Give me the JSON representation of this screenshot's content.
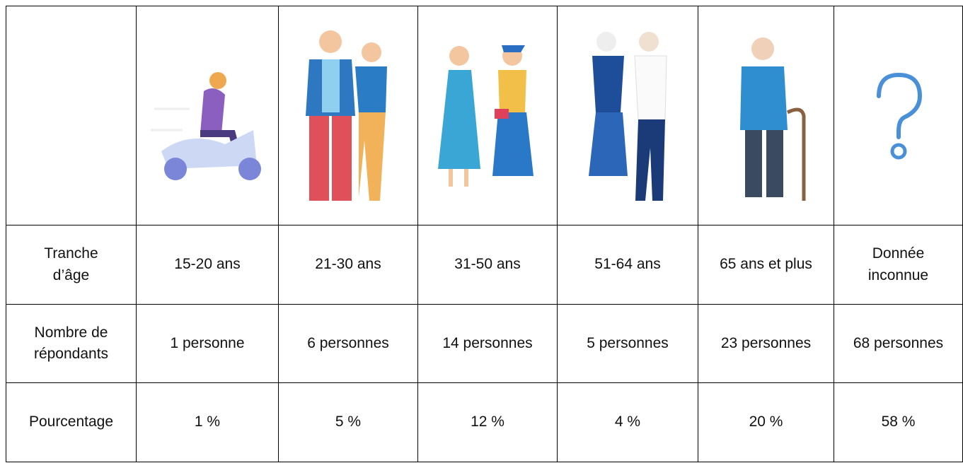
{
  "table": {
    "rows": [
      [
        "Tranche d’âge",
        "15-20 ans",
        "21-30 ans",
        "31-50 ans",
        "51-64 ans",
        "65 ans et plus",
        "Donnée inconnue"
      ],
      [
        "Nombre de répondants",
        "1 personne",
        "6 personnes",
        "14 personnes",
        "5 personnes",
        "23 personnes",
        "68 personnes"
      ],
      [
        "Pourcentage",
        "1 %",
        "5 %",
        "12 %",
        "4 %",
        "20 %",
        "58 %"
      ]
    ]
  }
}
